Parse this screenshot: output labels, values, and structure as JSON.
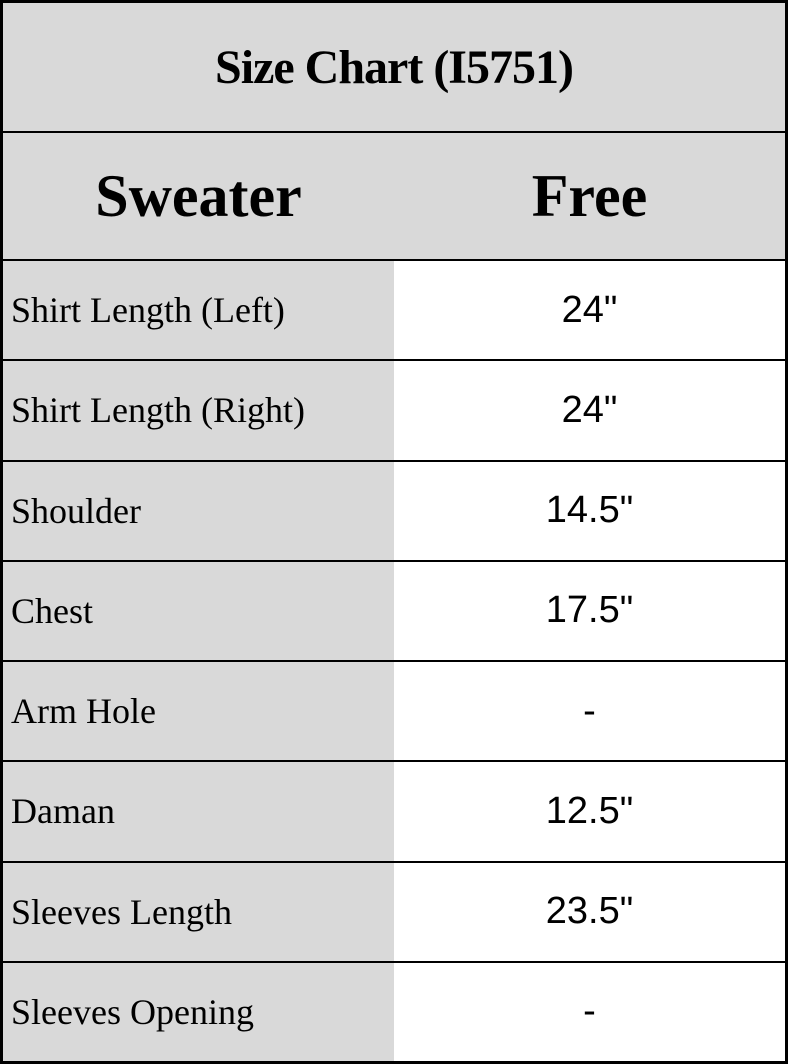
{
  "chart_data": {
    "type": "table",
    "title": "Size Chart (I5751)",
    "columns": [
      "Sweater",
      "Free"
    ],
    "rows": [
      {
        "label": "Shirt Length (Left)",
        "value": "24\""
      },
      {
        "label": "Shirt Length (Right)",
        "value": "24\""
      },
      {
        "label": "Shoulder",
        "value": "14.5\""
      },
      {
        "label": "Chest",
        "value": "17.5\""
      },
      {
        "label": "Arm Hole",
        "value": "-"
      },
      {
        "label": "Daman",
        "value": "12.5\""
      },
      {
        "label": "Sleeves Length",
        "value": "23.5\""
      },
      {
        "label": "Sleeves Opening",
        "value": "-"
      }
    ]
  },
  "colors": {
    "header_background": "#d9d9d9",
    "label_column_background": "#d9d9d9",
    "value_column_background": "#ffffff",
    "border": "#000000",
    "text": "#000000"
  }
}
